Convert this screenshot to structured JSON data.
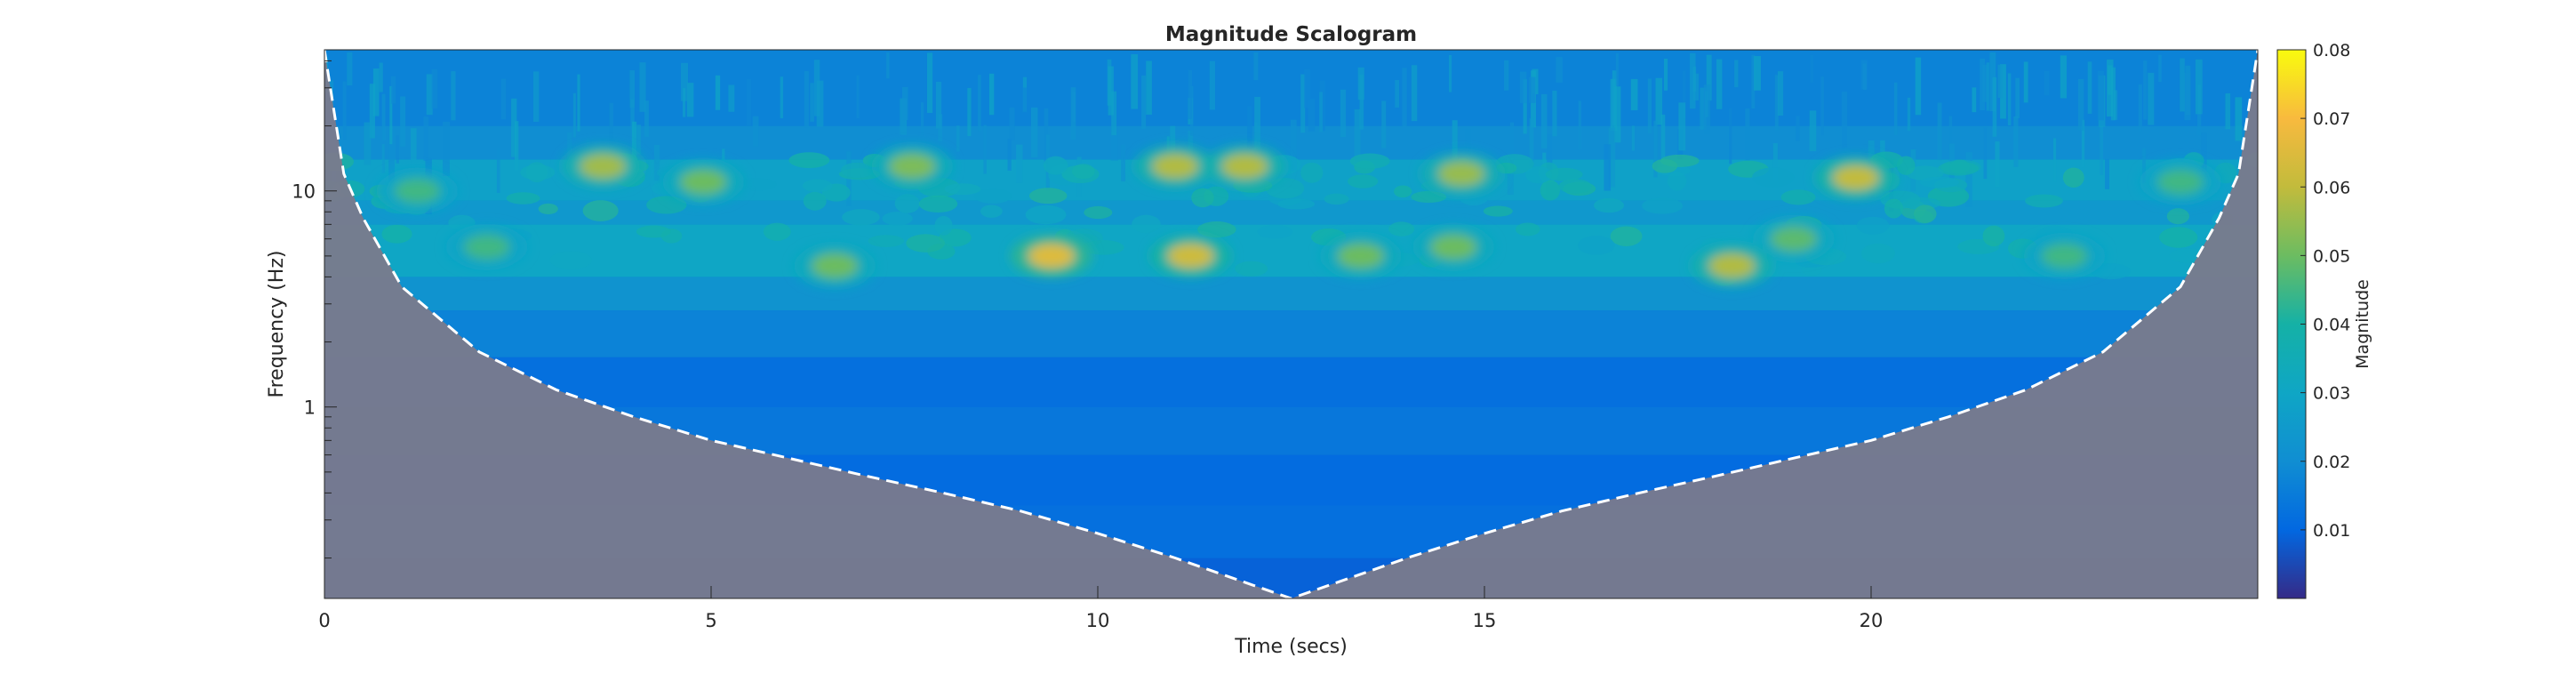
{
  "chart_data": {
    "type": "heatmap",
    "title": "Magnitude Scalogram",
    "xlabel": "Time (secs)",
    "ylabel": "Frequency (Hz)",
    "xlim": [
      0,
      25
    ],
    "ylim": [
      0.13,
      45
    ],
    "yscale": "log",
    "x_ticks": [
      0,
      5,
      10,
      15,
      20
    ],
    "x_tick_labels": [
      "0",
      "5",
      "10",
      "15",
      "20"
    ],
    "y_ticks": [
      1,
      10
    ],
    "y_tick_labels": [
      "1",
      "10"
    ],
    "colormap": "parula",
    "colorbar": {
      "label": "Magnitude",
      "range": [
        0,
        0.08
      ],
      "ticks": [
        0.01,
        0.02,
        0.03,
        0.04,
        0.05,
        0.06,
        0.07,
        0.08
      ],
      "tick_labels": [
        "0.01",
        "0.02",
        "0.03",
        "0.04",
        "0.05",
        "0.06",
        "0.07",
        "0.08"
      ]
    },
    "cone_of_influence": {
      "style": "white dashed",
      "shaded_outside_color": "#7a7a8c",
      "time": [
        0,
        0.25,
        0.5,
        1,
        2,
        3,
        4,
        5,
        6,
        7,
        8,
        9,
        10,
        11,
        12,
        12.5,
        13,
        14,
        15,
        16,
        17,
        18,
        19,
        20,
        21,
        22,
        23,
        24,
        24.5,
        24.75,
        25
      ],
      "frequency": [
        45,
        12,
        7.5,
        3.6,
        1.8,
        1.2,
        0.9,
        0.7,
        0.58,
        0.48,
        0.4,
        0.33,
        0.26,
        0.2,
        0.15,
        0.13,
        0.15,
        0.2,
        0.26,
        0.33,
        0.4,
        0.48,
        0.58,
        0.7,
        0.9,
        1.2,
        1.8,
        3.6,
        7.5,
        12,
        45
      ]
    },
    "hotspots": [
      {
        "time": 9.4,
        "frequency": 5.0,
        "magnitude": 0.065
      },
      {
        "time": 11.2,
        "frequency": 5.0,
        "magnitude": 0.062
      },
      {
        "time": 18.2,
        "frequency": 4.5,
        "magnitude": 0.058
      },
      {
        "time": 19.8,
        "frequency": 11.5,
        "magnitude": 0.06
      },
      {
        "time": 11.9,
        "frequency": 13,
        "magnitude": 0.058
      },
      {
        "time": 11.0,
        "frequency": 13,
        "magnitude": 0.058
      },
      {
        "time": 3.6,
        "frequency": 13,
        "magnitude": 0.056
      },
      {
        "time": 7.6,
        "frequency": 13,
        "magnitude": 0.052
      },
      {
        "time": 14.7,
        "frequency": 12,
        "magnitude": 0.055
      },
      {
        "time": 6.6,
        "frequency": 4.5,
        "magnitude": 0.05
      },
      {
        "time": 13.4,
        "frequency": 5.0,
        "magnitude": 0.05
      },
      {
        "time": 14.6,
        "frequency": 5.5,
        "magnitude": 0.05
      },
      {
        "time": 4.9,
        "frequency": 11,
        "magnitude": 0.05
      },
      {
        "time": 2.1,
        "frequency": 5.5,
        "magnitude": 0.045
      },
      {
        "time": 19.0,
        "frequency": 6.0,
        "magnitude": 0.048
      },
      {
        "time": 1.2,
        "frequency": 10,
        "magnitude": 0.045
      },
      {
        "time": 22.5,
        "frequency": 5.0,
        "magnitude": 0.045
      },
      {
        "time": 24.0,
        "frequency": 11,
        "magnitude": 0.045
      }
    ]
  }
}
